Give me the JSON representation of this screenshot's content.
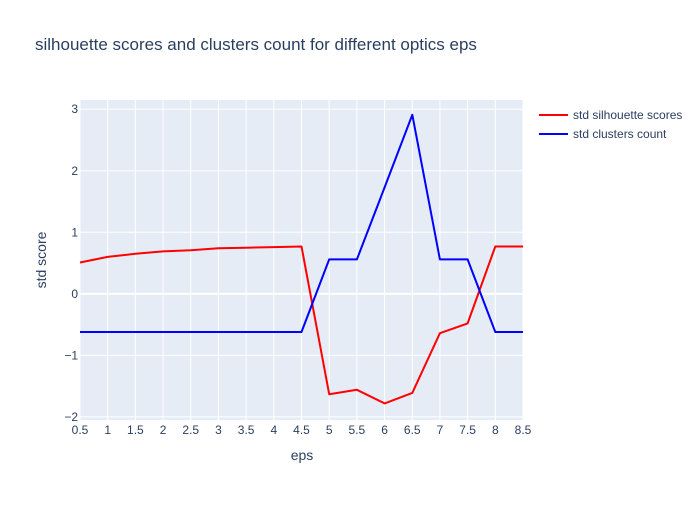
{
  "chart_data": {
    "type": "line",
    "title": "silhouette scores and clusters count for different optics eps",
    "xlabel": "eps",
    "ylabel": "std score",
    "x": [
      0.5,
      1,
      1.5,
      2,
      2.5,
      3,
      3.5,
      4,
      4.5,
      5,
      5.5,
      6,
      6.5,
      7,
      7.5,
      8,
      8.5
    ],
    "xlim": [
      0.5,
      8.5
    ],
    "ylim": [
      -2.05,
      3.15
    ],
    "x_ticks": [
      "0.5",
      "1",
      "1.5",
      "2",
      "2.5",
      "3",
      "3.5",
      "4",
      "4.5",
      "5",
      "5.5",
      "6",
      "6.5",
      "7",
      "7.5",
      "8",
      "8.5"
    ],
    "y_ticks": [
      {
        "value": -2,
        "label": "−2"
      },
      {
        "value": -1,
        "label": "−1"
      },
      {
        "value": 0,
        "label": "0"
      },
      {
        "value": 1,
        "label": "1"
      },
      {
        "value": 2,
        "label": "2"
      },
      {
        "value": 3,
        "label": "3"
      }
    ],
    "grid": true,
    "legend": "top-right",
    "series": [
      {
        "name": "std silhouette scores",
        "color": "#ff0000",
        "values": [
          0.51,
          0.6,
          0.65,
          0.69,
          0.71,
          0.74,
          0.75,
          0.76,
          0.77,
          -1.63,
          -1.56,
          -1.78,
          -1.61,
          -0.64,
          -0.48,
          0.77,
          0.77
        ]
      },
      {
        "name": "std clusters count",
        "color": "#0000ff",
        "values": [
          -0.62,
          -0.62,
          -0.62,
          -0.62,
          -0.62,
          -0.62,
          -0.62,
          -0.62,
          -0.62,
          0.56,
          0.56,
          1.73,
          2.91,
          0.56,
          0.56,
          -0.62,
          -0.62
        ]
      }
    ]
  }
}
